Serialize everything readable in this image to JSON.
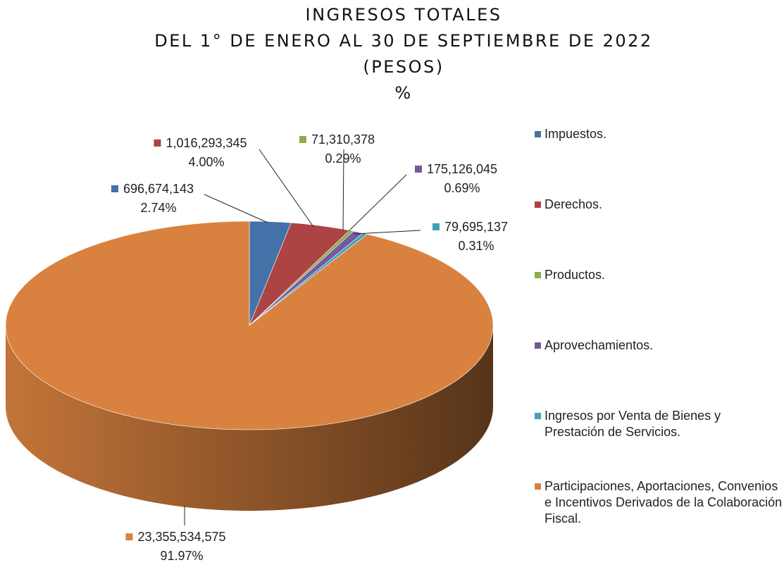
{
  "chart_data": {
    "type": "pie3d",
    "title": [
      "INGRESOS TOTALES",
      "DEL 1° DE ENERO AL 30 DE SEPTIEMBRE DE 2022",
      "(PESOS)",
      "%"
    ],
    "categories": [
      "Impuestos.",
      "Derechos.",
      "Productos.",
      "Aprovechamientos.",
      "Ingresos por Venta de Bienes y Prestación de Servicios.",
      "Participaciones, Aportaciones, Convenios e Incentivos Derivados de la Colaboración Fiscal."
    ],
    "values": [
      696674143,
      1016293345,
      71310378,
      175126045,
      79695137,
      23355534575
    ],
    "value_labels": [
      "696,674,143",
      "1,016,293,345",
      "71,310,378",
      "175,126,045",
      "79,695,137",
      "23,355,534,575"
    ],
    "percents": [
      2.74,
      4.0,
      0.29,
      0.69,
      0.31,
      91.97
    ],
    "percent_labels": [
      "2.74%",
      "4.00%",
      "0.29%",
      "0.69%",
      "0.31%",
      "91.97%"
    ],
    "colors": [
      "#4472a8",
      "#ac4444",
      "#8cac48",
      "#7558a0",
      "#3fa2b8",
      "#d9823f"
    ],
    "legend": "right"
  }
}
